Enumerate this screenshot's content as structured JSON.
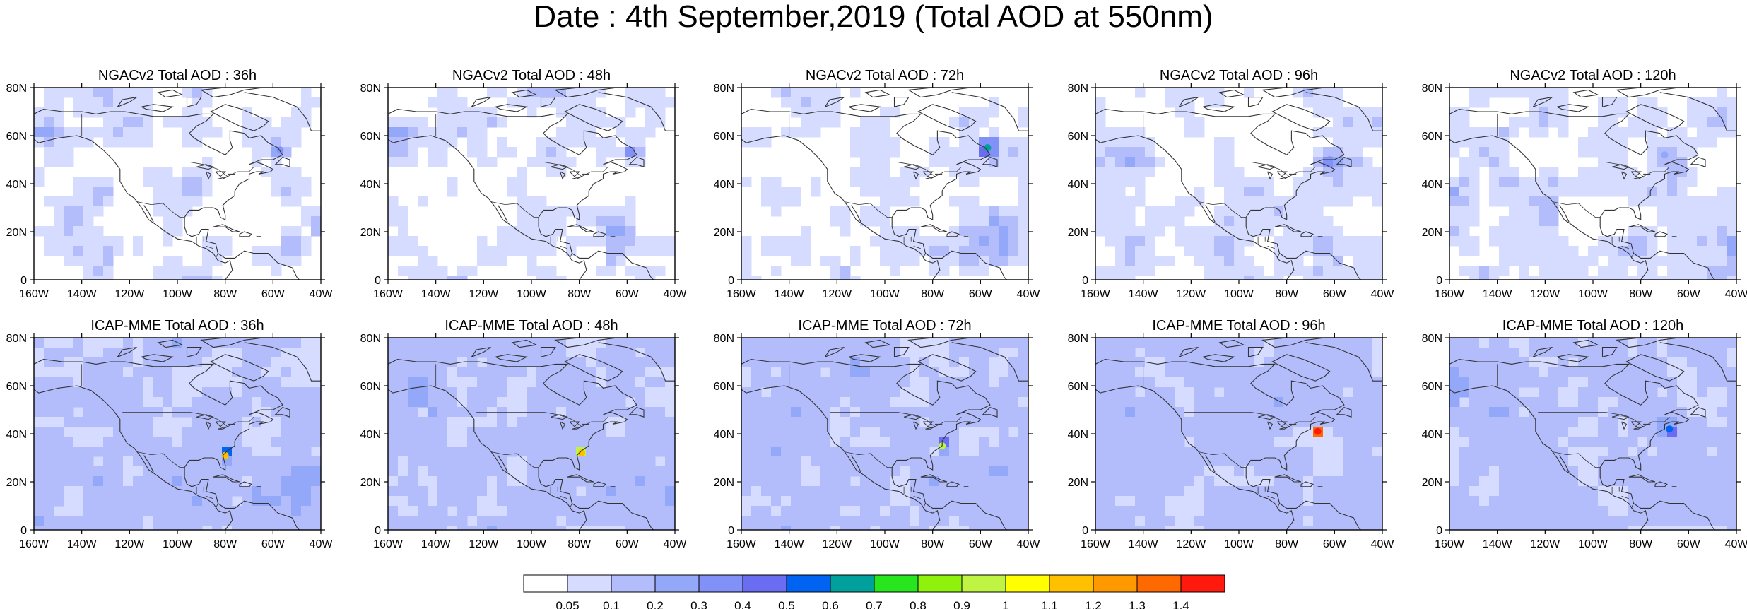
{
  "title": "Date : 4th September,2019 (Total AOD at 550nm)",
  "rows": [
    {
      "model": "NGACv2",
      "panels": [
        {
          "title": "NGACv2 Total AOD : 36h",
          "lead_hours": 36,
          "plume_max_aod": 0.3
        },
        {
          "title": "NGACv2 Total AOD : 48h",
          "lead_hours": 48,
          "plume_max_aod": 0.3
        },
        {
          "title": "NGACv2 Total AOD : 72h",
          "lead_hours": 72,
          "plume_max_aod": 0.6
        },
        {
          "title": "NGACv2 Total AOD : 96h",
          "lead_hours": 96,
          "plume_max_aod": 0.3
        },
        {
          "title": "NGACv2 Total AOD : 120h",
          "lead_hours": 120,
          "plume_max_aod": 0.2
        }
      ]
    },
    {
      "model": "ICAP-MME",
      "panels": [
        {
          "title": "ICAP-MME Total AOD : 36h",
          "lead_hours": 36,
          "plume_max_aod": 1.1
        },
        {
          "title": "ICAP-MME Total AOD : 48h",
          "lead_hours": 48,
          "plume_max_aod": 1.1
        },
        {
          "title": "ICAP-MME Total AOD : 72h",
          "lead_hours": 72,
          "plume_max_aod": 0.9
        },
        {
          "title": "ICAP-MME Total AOD : 96h",
          "lead_hours": 96,
          "plume_max_aod": 1.4
        },
        {
          "title": "ICAP-MME Total AOD : 120h",
          "lead_hours": 120,
          "plume_max_aod": 0.5
        }
      ]
    }
  ],
  "map_axes": {
    "lat_ticks": [
      "80N",
      "60N",
      "40N",
      "20N",
      "0"
    ],
    "lon_ticks": [
      "160W",
      "140W",
      "120W",
      "100W",
      "80W",
      "60W",
      "40W"
    ],
    "lat_range": [
      0,
      80
    ],
    "lon_range": [
      -160,
      -40
    ]
  },
  "colorbar": {
    "labels": [
      "0.05",
      "0.1",
      "0.2",
      "0.3",
      "0.4",
      "0.5",
      "0.6",
      "0.7",
      "0.8",
      "0.9",
      "1",
      "1.1",
      "1.2",
      "1.3",
      "1.4"
    ],
    "colors": [
      "#ffffff",
      "#d6dcff",
      "#b3bdfb",
      "#93a8f8",
      "#8191f7",
      "#6a6df2",
      "#0063f2",
      "#00a09c",
      "#27e61e",
      "#8ef20d",
      "#c0f443",
      "#ffff00",
      "#ffc000",
      "#ff9900",
      "#ff6a00",
      "#ff1a0d"
    ]
  },
  "colors": {
    "coast": "#333333",
    "ocean_base": "#c9d1fb"
  }
}
